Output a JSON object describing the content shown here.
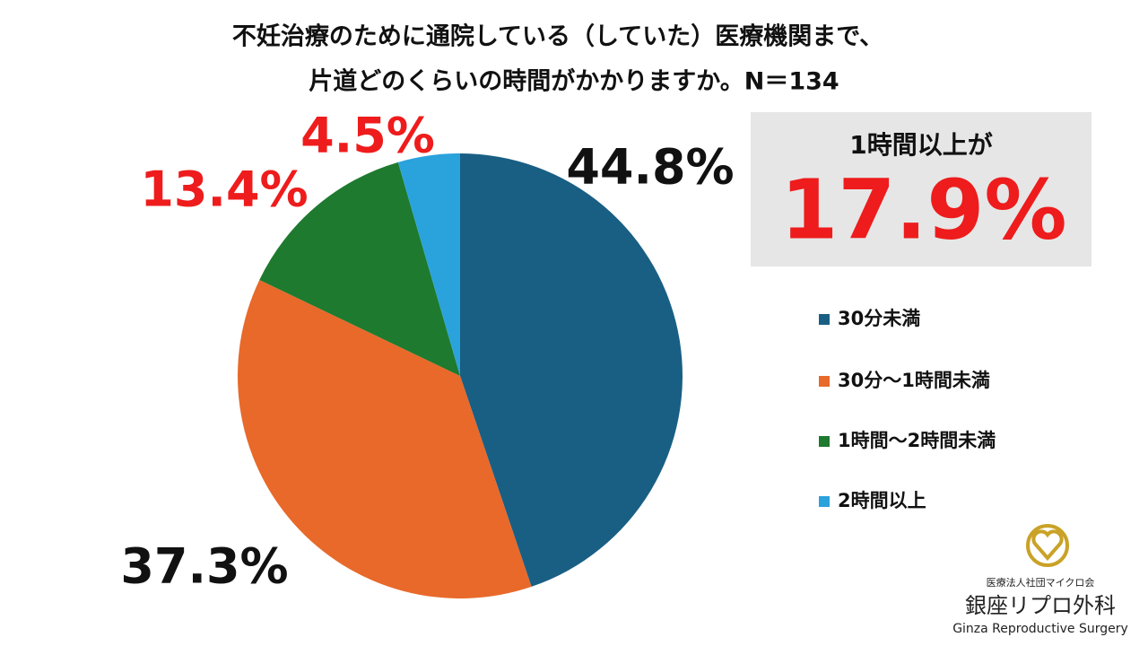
{
  "chart_data": {
    "type": "pie",
    "title": "不妊治療のために通院している（していた）医療機関まで、",
    "subtitle": "片道どのくらいの時間がかかりますか。N＝134",
    "categories": [
      "30分未満",
      "30分～1時間未満",
      "1時間～2時間未満",
      "2時間以上"
    ],
    "values": [
      44.8,
      37.3,
      13.4,
      4.5
    ],
    "value_labels": [
      "44.8%",
      "37.3%",
      "13.4%",
      "4.5%"
    ],
    "colors": [
      "#195f84",
      "#e8692a",
      "#1e7a2e",
      "#2aa2dc"
    ],
    "label_colors": [
      "#111111",
      "#111111",
      "#ee1c1c",
      "#ee1c1c"
    ],
    "start_angle": 0,
    "direction": "clockwise",
    "legend": "right",
    "callout": {
      "text": "1時間以上が",
      "value_label": "17.9%"
    },
    "logo": {
      "org": "医療法人社団マイクロ会",
      "name": "銀座リプロ外科",
      "name_en": "Ginza Reproductive Surgery"
    }
  }
}
